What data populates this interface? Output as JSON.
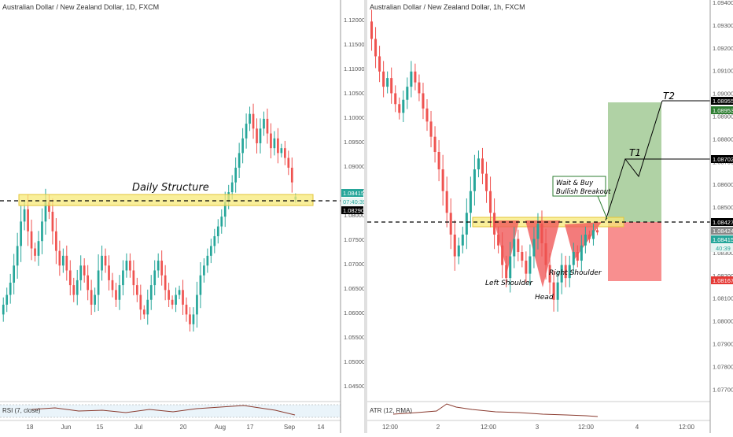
{
  "left_chart": {
    "title": "Australian Dollar / New Zealand Dollar, 1D, FXCM",
    "annotation": "Daily Structure",
    "indicator_label": "RSI (7, close)",
    "y_ticks": [
      "1.12000",
      "1.11500",
      "1.11000",
      "1.10500",
      "1.10000",
      "1.09500",
      "1.09000",
      "1.08500",
      "1.08000",
      "1.07500",
      "1.07000",
      "1.06500",
      "1.06000",
      "1.05500",
      "1.05000",
      "1.04500"
    ],
    "x_ticks": [
      "18",
      "Jun",
      "15",
      "Jul",
      "20",
      "Aug",
      "17",
      "Sep",
      "14"
    ],
    "price_label": "1.08415",
    "countdown_label": "07:40:39",
    "line_label": "1.08290",
    "colors": {
      "up": "#26a69a",
      "down": "#ef5350",
      "zone": "#f7e978",
      "zone_border": "#e3c53a",
      "label_green": "#26a69a",
      "label_black": "#000000"
    }
  },
  "right_chart": {
    "title": "Australian Dollar / New Zealand Dollar, 1h, FXCM",
    "indicator_label": "ATR (12, RMA)",
    "y_ticks": [
      "1.09400",
      "1.09300",
      "1.09200",
      "1.09100",
      "1.09000",
      "1.08900",
      "1.08800",
      "1.08700",
      "1.08600",
      "1.08500",
      "1.08400",
      "1.08300",
      "1.08200",
      "1.08100",
      "1.08000",
      "1.07900",
      "1.07800",
      "1.07700"
    ],
    "x_ticks": [
      "12:00",
      "2",
      "12:00",
      "3",
      "12:00",
      "4",
      "12:00"
    ],
    "labels": {
      "t2_price": "1.08955",
      "green_price": "1.08953",
      "t1_price": "1.08702",
      "line_price": "1.08427",
      "current_price": "1.08424",
      "last_price": "1.08415",
      "countdown": "40:39",
      "stop_price": "1.08167"
    },
    "annotations": {
      "call_line1": "Wait & Buy",
      "call_line2": "Bullish Breakout",
      "left_shoulder": "Left Shoulder",
      "head": "Head",
      "right_shoulder": "Right Shoulder",
      "t1": "T1",
      "t2": "T2"
    },
    "colors": {
      "profit_zone": "#8fbf7f",
      "loss_zone": "#f77b7b",
      "pattern_fill": "#f05a5a",
      "zone": "#f7e978"
    }
  },
  "chart_data": [
    {
      "type": "candlestick",
      "title": "Australian Dollar / New Zealand Dollar, 1D, FXCM",
      "ylim": [
        1.043,
        1.123
      ],
      "x_ticks": [
        "18",
        "Jun",
        "15",
        "Jul",
        "20",
        "Aug",
        "17",
        "Sep",
        "14"
      ],
      "series": [
        {
          "close": [
            1.062,
            1.064,
            1.0665,
            1.07,
            1.074,
            1.079,
            1.0815,
            1.077,
            1.0735,
            1.072,
            1.075,
            1.079,
            1.083,
            1.081,
            1.077,
            1.073,
            1.07,
            1.072,
            1.069,
            1.066,
            1.064,
            1.067,
            1.07,
            1.068,
            1.065,
            1.062,
            1.064,
            1.069,
            1.072,
            1.07,
            1.067,
            1.065,
            1.063,
            1.066,
            1.069,
            1.071,
            1.069,
            1.066,
            1.064,
            1.061,
            1.06,
            1.063,
            1.066,
            1.069,
            1.071,
            1.068,
            1.065,
            1.063,
            1.062,
            1.064,
            1.065,
            1.062,
            1.06,
            1.058,
            1.06,
            1.064,
            1.068,
            1.07,
            1.072,
            1.074,
            1.076,
            1.078,
            1.08,
            1.083,
            1.085,
            1.087,
            1.09,
            1.093,
            1.096,
            1.099,
            1.101,
            1.098,
            1.095,
            1.098,
            1.1,
            1.097,
            1.094,
            1.096,
            1.093,
            1.094,
            1.092,
            1.09,
            1.087,
            1.0841
          ],
          "open": [
            1.06,
            1.062,
            1.064,
            1.0665,
            1.07,
            1.074,
            1.079,
            1.0815,
            1.077,
            1.0735,
            1.072,
            1.075,
            1.079,
            1.083,
            1.081,
            1.077,
            1.073,
            1.07,
            1.072,
            1.069,
            1.066,
            1.064,
            1.067,
            1.07,
            1.068,
            1.065,
            1.062,
            1.064,
            1.069,
            1.072,
            1.07,
            1.067,
            1.065,
            1.063,
            1.066,
            1.069,
            1.071,
            1.069,
            1.066,
            1.064,
            1.061,
            1.06,
            1.063,
            1.066,
            1.069,
            1.071,
            1.068,
            1.065,
            1.063,
            1.062,
            1.064,
            1.065,
            1.062,
            1.06,
            1.058,
            1.06,
            1.064,
            1.068,
            1.07,
            1.072,
            1.074,
            1.076,
            1.078,
            1.08,
            1.083,
            1.085,
            1.087,
            1.09,
            1.093,
            1.096,
            1.099,
            1.101,
            1.098,
            1.095,
            1.098,
            1.1,
            1.097,
            1.094,
            1.096,
            1.093,
            1.094,
            1.092,
            1.09,
            1.0835
          ]
        }
      ],
      "annotations": [
        "Daily Structure"
      ],
      "levels": {
        "structure_line": 1.0829,
        "zone": [
          1.0824,
          1.0847
        ],
        "last": 1.08415
      }
    },
    {
      "type": "candlestick",
      "title": "Australian Dollar / New Zealand Dollar, 1h, FXCM",
      "ylim": [
        1.0765,
        1.0945
      ],
      "x_ticks": [
        "12:00",
        "2",
        "12:00",
        "3",
        "12:00",
        "4",
        "12:00"
      ],
      "series": [
        {
          "close": [
            1.093,
            1.0922,
            1.0915,
            1.0908,
            1.0912,
            1.0905,
            1.09,
            1.0896,
            1.0902,
            1.0908,
            1.0915,
            1.091,
            1.0905,
            1.0898,
            1.0892,
            1.0885,
            1.0878,
            1.087,
            1.086,
            1.085,
            1.084,
            1.083,
            1.0835,
            1.084,
            1.085,
            1.086,
            1.087,
            1.0875,
            1.0868,
            1.086,
            1.085,
            1.084,
            1.0835,
            1.0826,
            1.082,
            1.083,
            1.0838,
            1.0832,
            1.0828,
            1.0822,
            1.083,
            1.0838,
            1.0845,
            1.0836,
            1.0826,
            1.0818,
            1.081,
            1.0818,
            1.0826,
            1.082,
            1.0826,
            1.0832,
            1.0828,
            1.0835,
            1.084,
            1.0838,
            1.0842,
            1.0841
          ],
          "open": [
            1.0938,
            1.093,
            1.0922,
            1.0915,
            1.0908,
            1.0912,
            1.0905,
            1.09,
            1.0896,
            1.0902,
            1.0908,
            1.0915,
            1.091,
            1.0905,
            1.0898,
            1.0892,
            1.0885,
            1.0878,
            1.087,
            1.086,
            1.085,
            1.084,
            1.083,
            1.0835,
            1.084,
            1.085,
            1.086,
            1.087,
            1.0875,
            1.0868,
            1.086,
            1.085,
            1.084,
            1.0835,
            1.0826,
            1.082,
            1.083,
            1.0838,
            1.0832,
            1.0828,
            1.0822,
            1.083,
            1.0838,
            1.0845,
            1.0836,
            1.0826,
            1.0818,
            1.081,
            1.0818,
            1.0826,
            1.082,
            1.0826,
            1.0832,
            1.0828,
            1.0835,
            1.084,
            1.0838,
            1.0842
          ]
        }
      ],
      "annotations": [
        "Wait & Buy Bullish Breakout",
        "Left Shoulder",
        "Head",
        "Right Shoulder",
        "T1",
        "T2"
      ],
      "levels": {
        "neckline": 1.08427,
        "t1": 1.08702,
        "t2": 1.08955,
        "stop": 1.08167,
        "zone": [
          1.0838,
          1.0848
        ]
      }
    }
  ]
}
